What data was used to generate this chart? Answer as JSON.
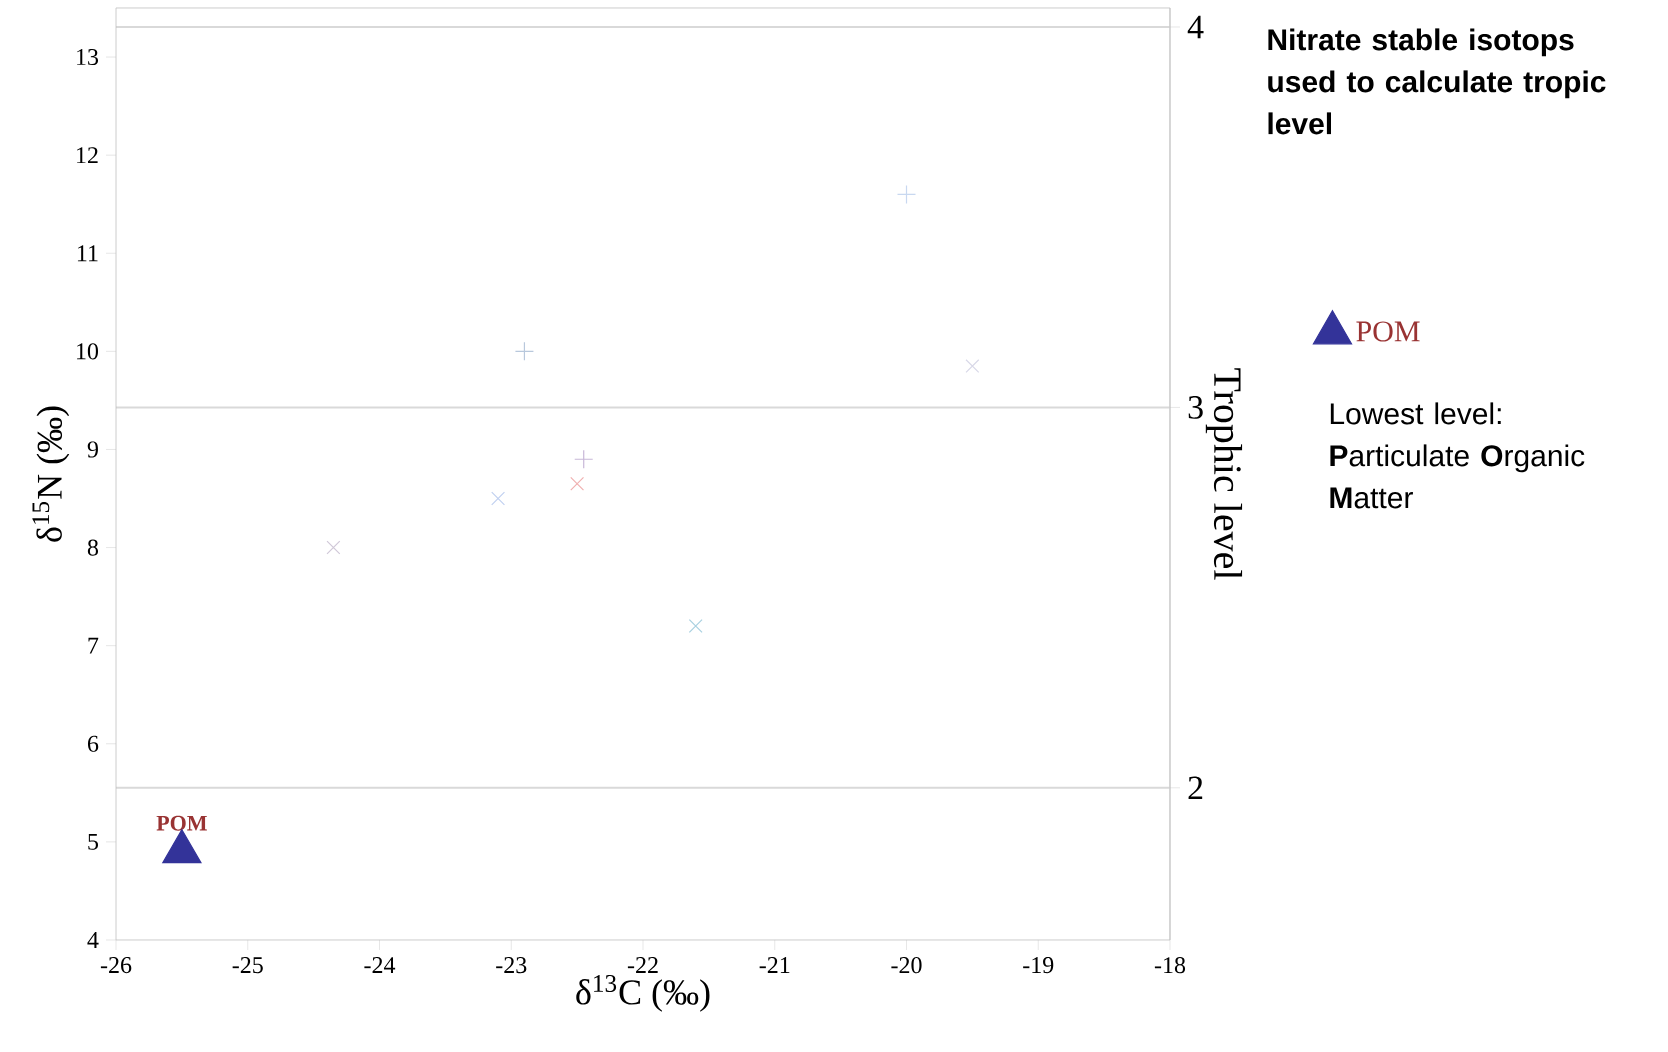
{
  "chart_data": {
    "type": "scatter",
    "title": "Nitrate stable isotops used to calculate tropic level",
    "xlabel": "δ$^{13}$C (‰)",
    "ylabel": "δ$^{15}$N (‰)",
    "y2label": "Trophic level",
    "xlim": [
      -26,
      -18
    ],
    "ylim": [
      4,
      13.5
    ],
    "xticks": [
      -26,
      -25,
      -24,
      -23,
      -22,
      -21,
      -20,
      -19,
      -18
    ],
    "yticks": [
      4,
      5,
      6,
      7,
      8,
      9,
      10,
      11,
      12,
      13
    ],
    "grid": false,
    "legend": "right",
    "series": [
      {
        "color": "#b8c8dc",
        "marker": "plus",
        "x": [
          -22.9
        ],
        "values": [
          10.0
        ]
      },
      {
        "color": "#c8d8f0",
        "marker": "plus",
        "x": [
          -20.0
        ],
        "values": [
          11.6
        ]
      },
      {
        "color": "#d8d8e8",
        "marker": "cross",
        "x": [
          -19.5
        ],
        "values": [
          9.85
        ]
      },
      {
        "color": "#c8b8d8",
        "marker": "plus",
        "x": [
          -22.45
        ],
        "values": [
          8.9
        ]
      },
      {
        "color": "#f0b0b0",
        "marker": "cross",
        "x": [
          -22.5
        ],
        "values": [
          8.65
        ]
      },
      {
        "color": "#c0d0f0",
        "marker": "cross",
        "x": [
          -23.1
        ],
        "values": [
          8.5
        ]
      },
      {
        "color": "#d0c8d8",
        "marker": "cross",
        "x": [
          -24.35
        ],
        "values": [
          8.0
        ]
      },
      {
        "color": "#a8d0e0",
        "marker": "cross",
        "x": [
          -21.6
        ],
        "values": [
          7.2
        ]
      },
      {
        "name": "POM",
        "color": "#333399",
        "marker": "triangle",
        "x": [
          -25.5
        ],
        "values": [
          4.9
        ]
      }
    ],
    "y2lim": [
      1.6,
      4.05
    ],
    "y2ticks": [
      2,
      3,
      4
    ],
    "ref_lines": [
      {
        "axis": "y2",
        "value": 2,
        "color": "#d9d9d9"
      },
      {
        "axis": "y2",
        "value": 3,
        "color": "#d9d9d9"
      },
      {
        "axis": "y2",
        "value": 4,
        "color": "#d9d9d9"
      }
    ],
    "annotations": [
      "POM",
      "Lowest level:",
      "**P**articulate **O**rganic **M**atter"
    ]
  }
}
